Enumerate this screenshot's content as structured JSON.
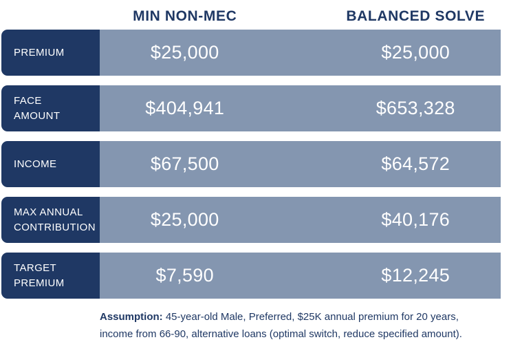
{
  "chart_data": {
    "type": "table",
    "columns": [
      "",
      "MIN NON-MEC",
      "BALANCED SOLVE"
    ],
    "rows": [
      [
        "PREMIUM",
        "$25,000",
        "$25,000"
      ],
      [
        "FACE AMOUNT",
        "$404,941",
        "$653,328"
      ],
      [
        "INCOME",
        "$67,500",
        "$64,572"
      ],
      [
        "MAX ANNUAL CONTRIBUTION",
        "$25,000",
        "$40,176"
      ],
      [
        "TARGET PREMIUM",
        "$7,590",
        "$12,245"
      ]
    ],
    "footnote": "Assumption: 45-year-old Male, Preferred, $25K annual premium for 20 years, income from 66-90, alternative loans (optimal switch, reduce specified amount).",
    "layout": "row labels in dark navy pills on left, two centered value columns on blue-gray bars, footnote bottom"
  },
  "footnote": {
    "label": "Assumption:",
    "text": "45-year-old Male, Preferred, $25K annual premium for 20 years, income from 66-90, alternative loans (optimal switch, reduce specified amount)."
  },
  "colors": {
    "row_label_bg": "#1F3864",
    "cell_bg": "#8496B0",
    "header_text": "#1F3864",
    "value_text": "#FFFFFF",
    "footnote_text": "#1F3864",
    "background": "#FFFFFF"
  }
}
